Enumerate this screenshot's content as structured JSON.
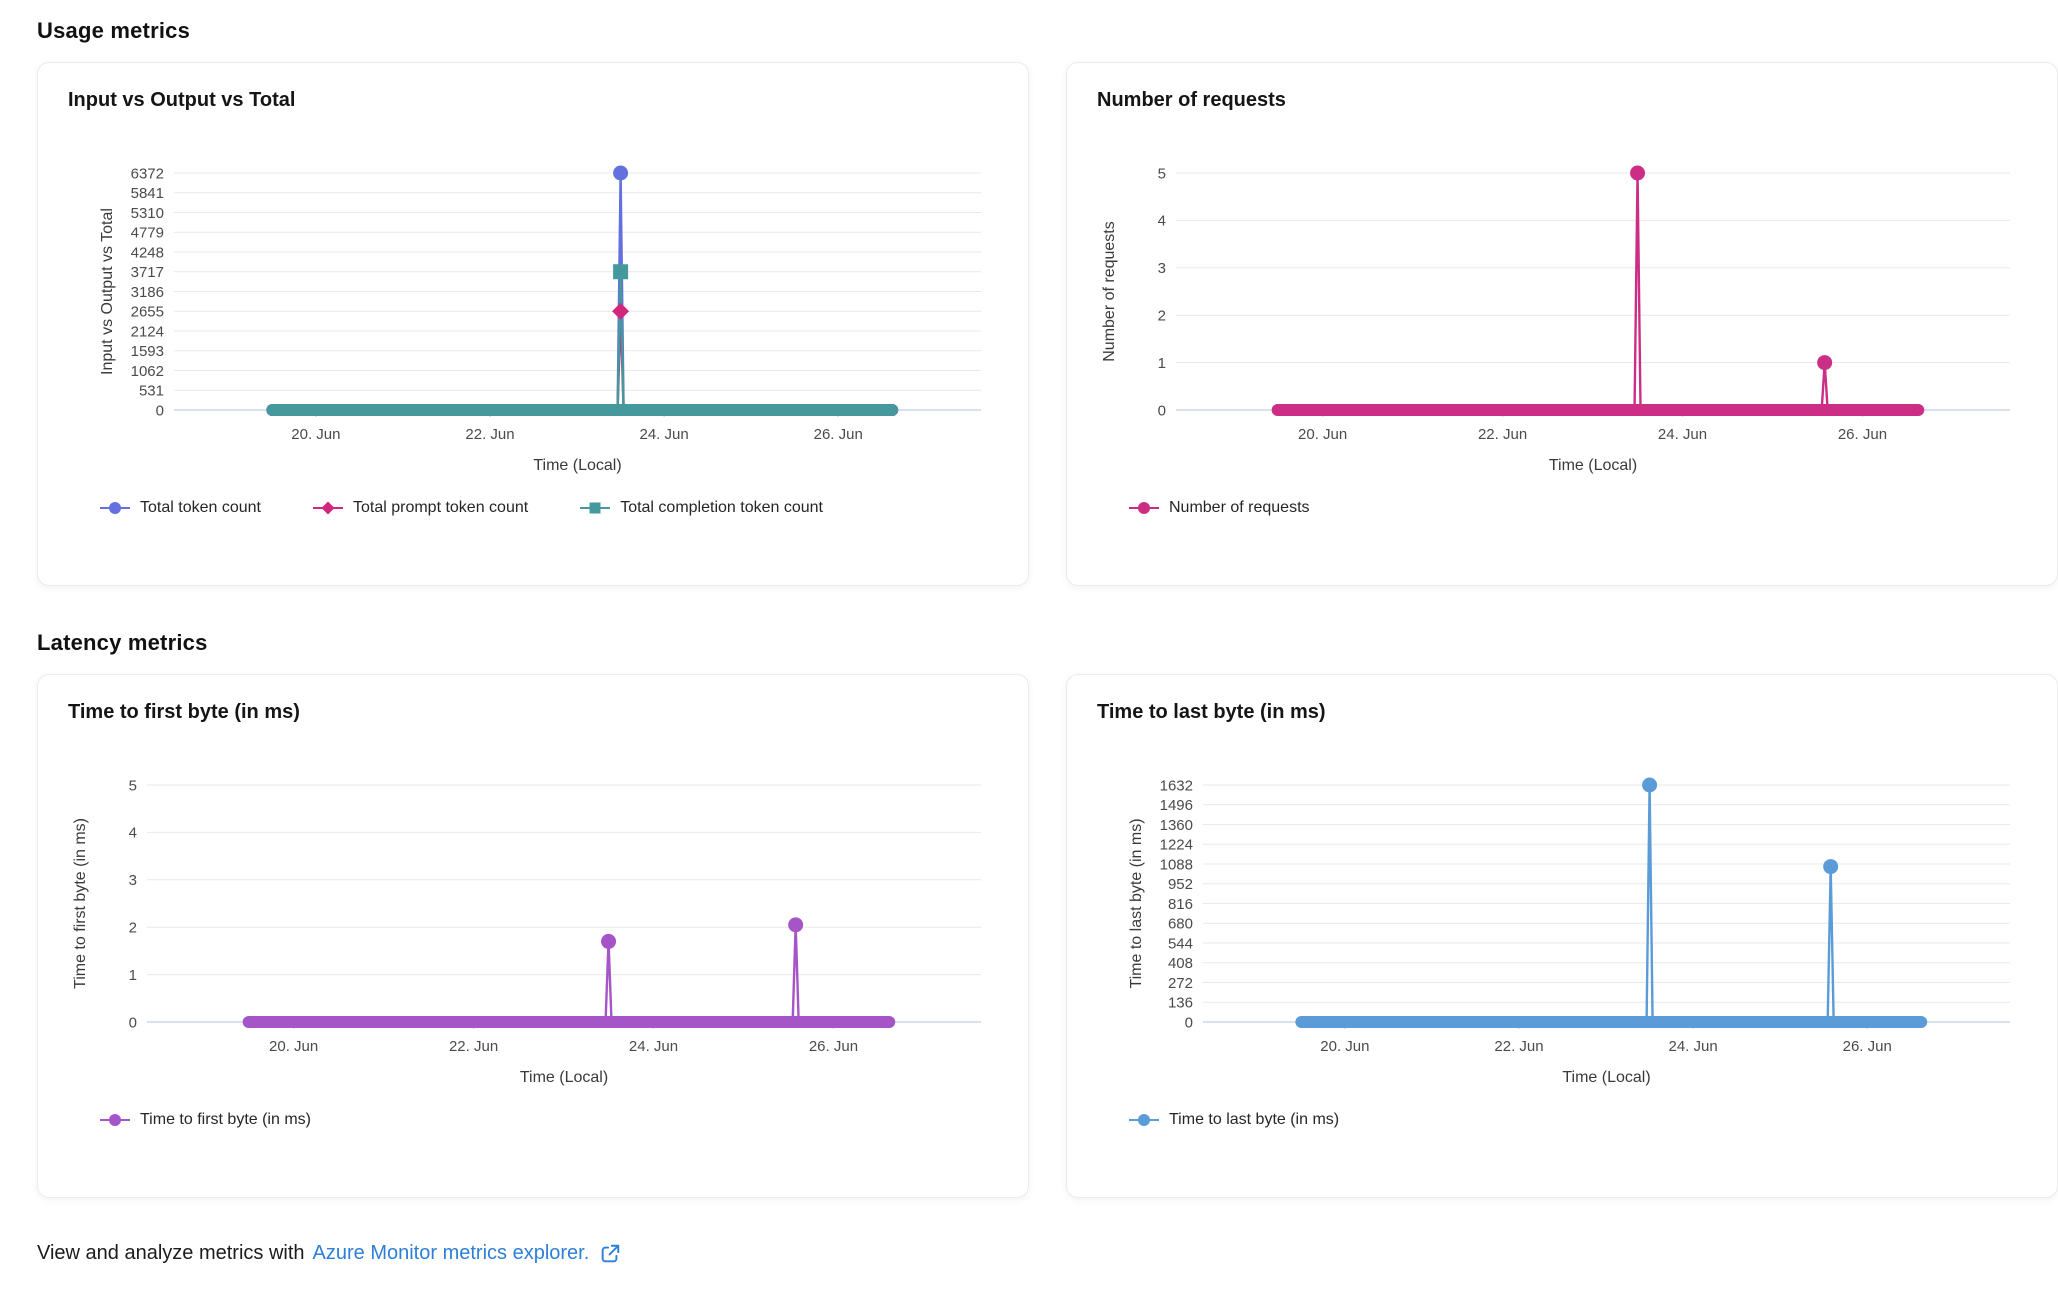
{
  "page": {
    "sections": [
      {
        "id": "usage",
        "title": "Usage metrics"
      },
      {
        "id": "latency",
        "title": "Latency metrics"
      }
    ],
    "footer": {
      "text": "View and analyze metrics with",
      "link_label": "Azure Monitor metrics explorer.",
      "link_icon": "open-in-new-icon"
    }
  },
  "colors": {
    "grid": "#e9e9e9",
    "axis_line": "#ccd7ea",
    "tick_label": "#4b4b4b",
    "axis_title": "#3a3a3a",
    "link": "#2e7fd6",
    "card_border": "#ebebeb"
  },
  "chart_data": [
    {
      "section": "usage",
      "type": "line",
      "title": "Input vs Output vs Total",
      "ylabel": "Input vs Output vs Total",
      "xlabel": "Time (Local)",
      "y_ticks": [
        0,
        531,
        1062,
        1593,
        2124,
        2655,
        3186,
        3717,
        4248,
        4779,
        5310,
        5841,
        6372
      ],
      "ylim": [
        0,
        6372
      ],
      "x_ticks": [
        {
          "day": 20,
          "label": "20. Jun"
        },
        {
          "day": 22,
          "label": "22. Jun"
        },
        {
          "day": 24,
          "label": "24. Jun"
        },
        {
          "day": 26,
          "label": "26. Jun"
        }
      ],
      "x_range_days": [
        18.37,
        27.64
      ],
      "baseline": {
        "value": 0,
        "start_day": 19.5,
        "end_day": 26.62
      },
      "grid": true,
      "legend_position": "bottom",
      "series": [
        {
          "name": "Total token count",
          "color": "#6570e0",
          "marker": "circle",
          "spikes": [
            {
              "day": 23.5,
              "value": 6372
            }
          ]
        },
        {
          "name": "Total prompt token count",
          "color": "#d0277c",
          "marker": "diamond",
          "spikes": [
            {
              "day": 23.5,
              "value": 2655
            }
          ]
        },
        {
          "name": "Total completion token count",
          "color": "#45989c",
          "marker": "square",
          "spikes": [
            {
              "day": 23.5,
              "value": 3717
            }
          ]
        }
      ]
    },
    {
      "section": "usage",
      "type": "line",
      "title": "Number of requests",
      "ylabel": "Number of requests",
      "xlabel": "Time (Local)",
      "y_ticks": [
        0,
        1,
        2,
        3,
        4,
        5
      ],
      "ylim": [
        0,
        5
      ],
      "x_ticks": [
        {
          "day": 20,
          "label": "20. Jun"
        },
        {
          "day": 22,
          "label": "22. Jun"
        },
        {
          "day": 24,
          "label": "24. Jun"
        },
        {
          "day": 26,
          "label": "26. Jun"
        }
      ],
      "x_range_days": [
        18.37,
        27.64
      ],
      "baseline": {
        "value": 0,
        "start_day": 19.5,
        "end_day": 26.62
      },
      "grid": true,
      "legend_position": "bottom",
      "series": [
        {
          "name": "Number of requests",
          "color": "#cc2e86",
          "marker": "circle",
          "spikes": [
            {
              "day": 23.5,
              "value": 5
            },
            {
              "day": 25.58,
              "value": 1
            }
          ]
        }
      ]
    },
    {
      "section": "latency",
      "type": "line",
      "title": "Time to first byte (in ms)",
      "ylabel": "Time to first byte (in ms)",
      "xlabel": "Time (Local)",
      "y_ticks": [
        0,
        1,
        2,
        3,
        4,
        5
      ],
      "ylim": [
        0,
        5
      ],
      "x_ticks": [
        {
          "day": 20,
          "label": "20. Jun"
        },
        {
          "day": 22,
          "label": "22. Jun"
        },
        {
          "day": 24,
          "label": "24. Jun"
        },
        {
          "day": 26,
          "label": "26. Jun"
        }
      ],
      "x_range_days": [
        18.37,
        27.64
      ],
      "baseline": {
        "value": 0,
        "start_day": 19.5,
        "end_day": 26.62
      },
      "grid": true,
      "legend_position": "bottom",
      "series": [
        {
          "name": "Time to first byte (in ms)",
          "color": "#a655c8",
          "marker": "circle",
          "spikes": [
            {
              "day": 23.5,
              "value": 1.7
            },
            {
              "day": 25.58,
              "value": 2.05
            }
          ]
        }
      ]
    },
    {
      "section": "latency",
      "type": "line",
      "title": "Time to last byte (in ms)",
      "ylabel": "Time to last byte (in ms)",
      "xlabel": "Time (Local)",
      "y_ticks": [
        0,
        136,
        272,
        408,
        544,
        680,
        816,
        952,
        1088,
        1224,
        1360,
        1496,
        1632
      ],
      "ylim": [
        0,
        1632
      ],
      "x_ticks": [
        {
          "day": 20,
          "label": "20. Jun"
        },
        {
          "day": 22,
          "label": "22. Jun"
        },
        {
          "day": 24,
          "label": "24. Jun"
        },
        {
          "day": 26,
          "label": "26. Jun"
        }
      ],
      "x_range_days": [
        18.37,
        27.64
      ],
      "baseline": {
        "value": 0,
        "start_day": 19.5,
        "end_day": 26.62
      },
      "grid": true,
      "legend_position": "bottom",
      "series": [
        {
          "name": "Time to last byte (in ms)",
          "color": "#5b9bd8",
          "marker": "circle",
          "spikes": [
            {
              "day": 23.5,
              "value": 1632
            },
            {
              "day": 25.58,
              "value": 1070
            }
          ]
        }
      ]
    }
  ]
}
